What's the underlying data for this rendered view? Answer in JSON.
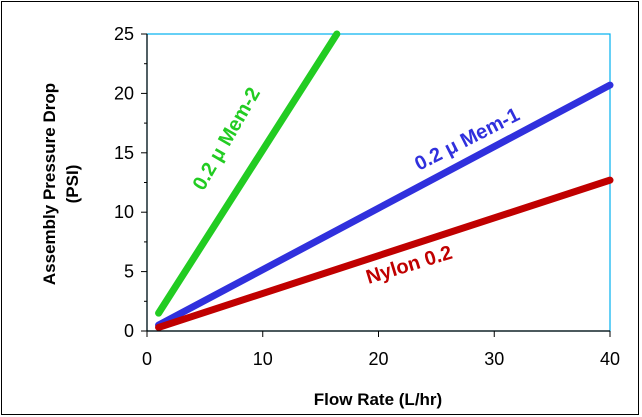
{
  "chart_data": {
    "type": "line",
    "title": "",
    "xlabel": "Flow Rate (L/hr)",
    "ylabel_line1": "Assembly Pressure Drop",
    "ylabel_line2": "(PSI)",
    "xlim": [
      0,
      40
    ],
    "ylim": [
      0,
      25
    ],
    "x_ticks": [
      0,
      10,
      20,
      30,
      40
    ],
    "y_ticks": [
      0,
      5,
      10,
      15,
      20,
      25
    ],
    "grid": false,
    "legend": "inline labels",
    "plot_border_color": "#00b0f0",
    "series": [
      {
        "name": "0.2 μ  Mem-2",
        "color": "#22cc22",
        "x": [
          1,
          16.4
        ],
        "y": [
          1.5,
          25
        ]
      },
      {
        "name": "0.2 μ  Mem-1",
        "color": "#3030dd",
        "x": [
          1,
          40
        ],
        "y": [
          0.5,
          20.7
        ]
      },
      {
        "name": "Nylon 0.2",
        "color": "#c00000",
        "x": [
          1,
          40
        ],
        "y": [
          0.3,
          12.7
        ]
      }
    ]
  }
}
